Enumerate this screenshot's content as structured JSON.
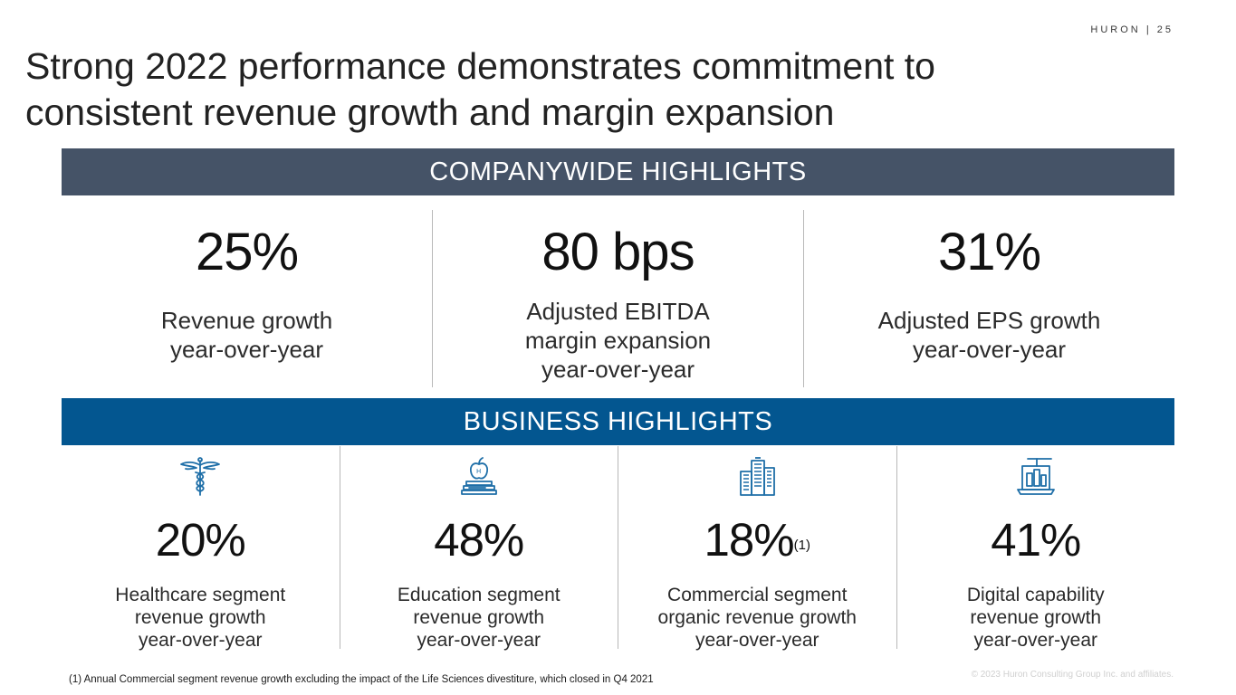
{
  "header": {
    "brand": "HURON",
    "separator": "|",
    "page_number": "25"
  },
  "title": {
    "line1": "Strong 2022 performance demonstrates commitment to",
    "line2": "consistent revenue growth and margin expansion"
  },
  "companywide": {
    "heading": "COMPANYWIDE HIGHLIGHTS",
    "stats": [
      {
        "value": "25%",
        "label_lines": [
          "Revenue growth",
          "year-over-year"
        ]
      },
      {
        "value": "80 bps",
        "label_lines": [
          "Adjusted EBITDA",
          "margin expansion",
          "year-over-year"
        ]
      },
      {
        "value": "31%",
        "label_lines": [
          "Adjusted EPS growth",
          "year-over-year"
        ]
      }
    ]
  },
  "business": {
    "heading": "BUSINESS HIGHLIGHTS",
    "stats": [
      {
        "icon": "caduceus-icon",
        "value": "20%",
        "superscript": "",
        "label_lines": [
          "Healthcare segment",
          "revenue growth",
          "year-over-year"
        ]
      },
      {
        "icon": "apple-books-icon",
        "value": "48%",
        "superscript": "",
        "label_lines": [
          "Education segment",
          "revenue growth",
          "year-over-year"
        ]
      },
      {
        "icon": "office-buildings-icon",
        "value": "18%",
        "superscript": "(1)",
        "label_lines": [
          "Commercial segment",
          "organic revenue growth",
          "year-over-year"
        ]
      },
      {
        "icon": "digital-laptop-icon",
        "value": "41%",
        "superscript": "",
        "label_lines": [
          "Digital capability",
          "revenue growth",
          "year-over-year"
        ]
      }
    ]
  },
  "footnote": "(1) Annual Commercial segment revenue growth excluding the impact of the Life Sciences divestiture, which closed in Q4 2021",
  "copyright": "© 2023 Huron Consulting Group Inc. and affiliates.",
  "colors": {
    "company_band": "#455367",
    "business_band": "#035690",
    "icon": "#1f6fa8"
  }
}
